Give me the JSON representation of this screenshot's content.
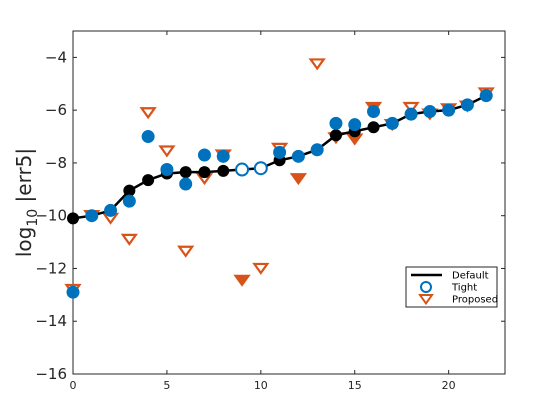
{
  "chart_data": {
    "type": "line",
    "title": "",
    "xlabel": "",
    "ylabel": "log10 |err5|",
    "ylabel_main": "log",
    "ylabel_sub": "10",
    "ylabel_rest": " |err5|",
    "xlim": [
      0,
      23
    ],
    "ylim": [
      -16,
      -3
    ],
    "xticks": [
      0,
      5,
      10,
      15,
      20
    ],
    "yticks": [
      -16,
      -14,
      -12,
      -10,
      -8,
      -6,
      -4
    ],
    "grid": false,
    "legend_position": "bottom-right",
    "series": [
      {
        "name": "Default",
        "color": "#000000",
        "style": "line-filled-circle",
        "x": [
          0,
          1,
          2,
          3,
          4,
          5,
          6,
          7,
          8,
          9,
          10,
          11,
          12,
          13,
          14,
          15,
          16,
          17,
          18,
          19,
          20,
          21,
          22
        ],
        "y": [
          -10.1,
          -10.0,
          -9.8,
          -9.05,
          -8.65,
          -8.4,
          -8.35,
          -8.35,
          -8.3,
          -8.25,
          -8.2,
          -7.9,
          -7.75,
          -7.5,
          -6.95,
          -6.8,
          -6.65,
          -6.5,
          -6.15,
          -6.05,
          -6.0,
          -5.8,
          -5.45
        ]
      },
      {
        "name": "Tight",
        "color": "#0072BD",
        "style": "circle",
        "x": [
          0,
          1,
          2,
          3,
          4,
          5,
          6,
          7,
          8,
          9,
          10,
          11,
          12,
          13,
          14,
          15,
          16,
          17,
          18,
          19,
          20,
          21,
          22
        ],
        "y": [
          -12.9,
          -10.0,
          -9.8,
          -9.45,
          -7.0,
          -8.25,
          -8.8,
          -7.7,
          -7.75,
          -8.25,
          -8.2,
          -7.6,
          -7.75,
          -7.5,
          -6.5,
          -6.55,
          -6.05,
          -6.5,
          -6.15,
          -6.05,
          -6.0,
          -5.8,
          -5.45
        ],
        "hollow_indices": [
          9,
          10
        ]
      },
      {
        "name": "Proposed",
        "color": "#D95319",
        "style": "triangle-down",
        "x": [
          0,
          1,
          2,
          3,
          4,
          5,
          6,
          7,
          8,
          9,
          10,
          11,
          12,
          13,
          14,
          15,
          16,
          17,
          18,
          19,
          20,
          21,
          22
        ],
        "y": [
          -12.75,
          -9.95,
          -10.05,
          -10.85,
          -6.05,
          -7.5,
          -11.3,
          -8.55,
          -7.65,
          -12.4,
          -11.95,
          -7.4,
          -8.55,
          -4.2,
          -7.0,
          -7.05,
          -5.85,
          -6.5,
          -5.85,
          -6.1,
          -5.9,
          -5.8,
          -5.3
        ],
        "filled_indices": [
          9,
          12,
          15,
          16,
          20
        ]
      }
    ]
  }
}
